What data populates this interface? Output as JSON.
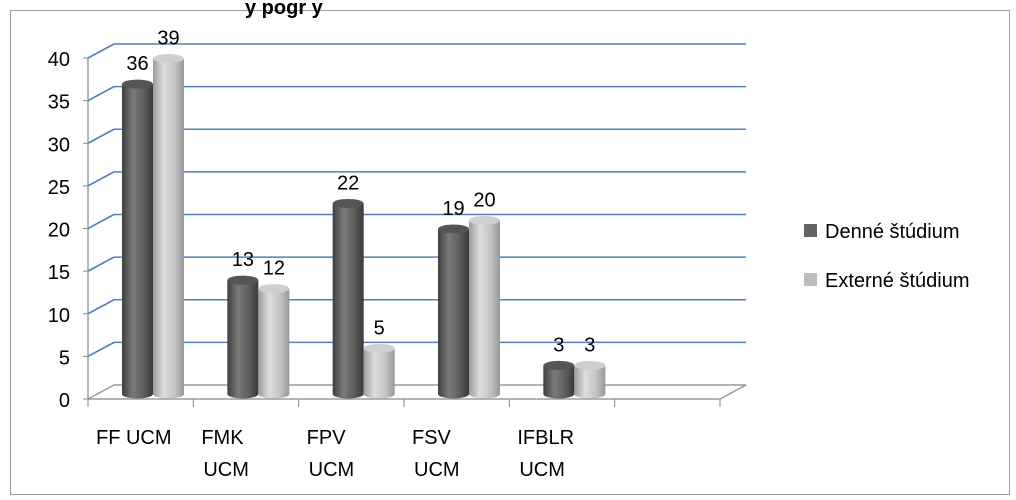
{
  "chart_data": {
    "type": "bar",
    "title": "y pogr y",
    "categories": [
      {
        "line1": "FF UCM",
        "line2": ""
      },
      {
        "line1": "FMK",
        "line2": "UCM"
      },
      {
        "line1": "FPV",
        "line2": "UCM"
      },
      {
        "line1": "FSV",
        "line2": "UCM"
      },
      {
        "line1": "IFBLR",
        "line2": "UCM"
      }
    ],
    "series": [
      {
        "name": "Denné štúdium",
        "color": "#636363",
        "values": [
          36,
          13,
          22,
          19,
          3
        ]
      },
      {
        "name": "Externé štúdium",
        "color": "#bdbdbd",
        "values": [
          39,
          12,
          5,
          20,
          3
        ]
      }
    ],
    "ylim": [
      0,
      40
    ],
    "yticks": [
      "0",
      "5",
      "10",
      "15",
      "20",
      "25",
      "30",
      "35",
      "40"
    ],
    "grid": true,
    "gridline_color": "#4f81bd",
    "legend_position": "right",
    "chart_style": "3d-cylinder"
  }
}
